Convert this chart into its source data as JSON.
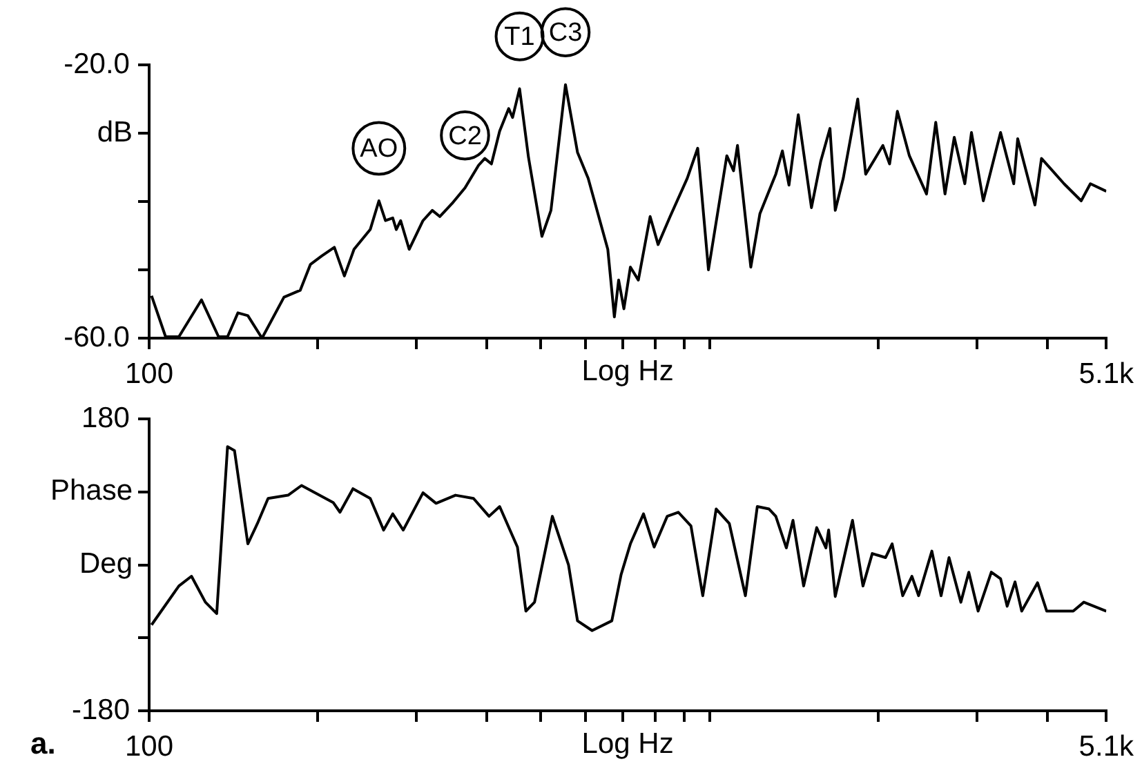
{
  "chart_data": [
    {
      "type": "line",
      "ylabel": "dB",
      "xlabel": "Log Hz",
      "log": "x",
      "marker": "none",
      "line_style": "solid",
      "xlim": [
        100,
        5100
      ],
      "xticks": [
        100,
        {
          "value": 200,
          "label": null
        },
        {
          "value": 300,
          "label": null
        },
        {
          "value": 400,
          "label": null
        },
        {
          "value": 500,
          "label": null
        },
        {
          "value": 600,
          "label": null
        },
        {
          "value": 700,
          "label": null
        },
        {
          "value": 800,
          "label": null
        },
        {
          "value": 900,
          "label": null
        },
        {
          "value": 1000,
          "label": null
        },
        {
          "value": 2000,
          "label": null
        },
        {
          "value": 3000,
          "label": null
        },
        {
          "value": 4000,
          "label": null
        },
        {
          "value": 5100,
          "label": "5.1k"
        }
      ],
      "ylim": [
        -60,
        -20
      ],
      "yticks": [
        {
          "value": -20,
          "label": "-20.0"
        },
        {
          "value": -30,
          "label": null
        },
        {
          "value": -40,
          "label": null
        },
        {
          "value": -50,
          "label": null
        },
        {
          "value": -60,
          "label": "-60.0"
        }
      ],
      "annotations": [
        {
          "text": "AO",
          "x": 257,
          "y": -39.9
        },
        {
          "text": "C2",
          "x": 366,
          "y": -38
        },
        {
          "text": "T1",
          "x": 458,
          "y": -23.5
        },
        {
          "text": "C3",
          "x": 553,
          "y": -22.9
        }
      ],
      "x": [
        101,
        107,
        113,
        124,
        133,
        138,
        144,
        150,
        159,
        174,
        186,
        194,
        203,
        214,
        223,
        232,
        248,
        257,
        264,
        272,
        276,
        281,
        291,
        308,
        320,
        330,
        347,
        366,
        387,
        397,
        408,
        422,
        438,
        445,
        458,
        475,
        502,
        521,
        553,
        581,
        607,
        658,
        676,
        688,
        703,
        722,
        746,
        783,
        809,
        850,
        912,
        952,
        995,
        1073,
        1103,
        1121,
        1184,
        1229,
        1312,
        1348,
        1385,
        1439,
        1519,
        1578,
        1639,
        1675,
        1731,
        1837,
        1898,
        2037,
        2094,
        2162,
        2271,
        2437,
        2531,
        2629,
        2731,
        2852,
        2931,
        3077,
        3303,
        3487,
        3544,
        3804,
        3908,
        4287,
        4600,
        4777,
        5100
      ],
      "series": [
        {
          "color": "#000000",
          "values": [
            -53.8,
            -59.8,
            -59.8,
            -54.4,
            -59.8,
            -59.8,
            -56.3,
            -56.7,
            -60,
            -54,
            -53,
            -49.2,
            -48,
            -46.7,
            -50.9,
            -47,
            -44.1,
            -39.9,
            -42.8,
            -42.4,
            -44.1,
            -42.8,
            -47,
            -42.8,
            -41.3,
            -42.2,
            -40.3,
            -38,
            -34.7,
            -33.7,
            -34.5,
            -29.7,
            -26.4,
            -27.7,
            -23.5,
            -33.5,
            -45.1,
            -41.3,
            -22.9,
            -32.8,
            -36.6,
            -47,
            -56.9,
            -51.5,
            -55.7,
            -49.6,
            -51.5,
            -42.2,
            -46.3,
            -42.2,
            -36.6,
            -32.2,
            -50,
            -33.3,
            -35.5,
            -31.8,
            -49.6,
            -41.8,
            -36,
            -32.6,
            -37.6,
            -27.3,
            -40.9,
            -34.1,
            -29.3,
            -41.3,
            -36.6,
            -25,
            -36,
            -31.8,
            -34.5,
            -26.8,
            -33.3,
            -38.9,
            -28.4,
            -38.9,
            -30.6,
            -37.4,
            -29.9,
            -39.9,
            -29.9,
            -37.4,
            -30.8,
            -40.5,
            -33.7,
            -37.4,
            -39.9,
            -37.4,
            -38.5
          ]
        }
      ]
    },
    {
      "type": "line",
      "ylabel": "Phase Deg",
      "xlabel": "Log Hz",
      "log": "x",
      "marker": "none",
      "line_style": "solid",
      "xlim": [
        100,
        5100
      ],
      "xticks": [
        100,
        {
          "value": 200,
          "label": null
        },
        {
          "value": 300,
          "label": null
        },
        {
          "value": 400,
          "label": null
        },
        {
          "value": 500,
          "label": null
        },
        {
          "value": 600,
          "label": null
        },
        {
          "value": 700,
          "label": null
        },
        {
          "value": 800,
          "label": null
        },
        {
          "value": 900,
          "label": null
        },
        {
          "value": 1000,
          "label": null
        },
        {
          "value": 2000,
          "label": null
        },
        {
          "value": 3000,
          "label": null
        },
        {
          "value": 4000,
          "label": null
        },
        {
          "value": 5100,
          "label": "5.1k"
        }
      ],
      "ylim": [
        -180,
        180
      ],
      "yticks": [
        180,
        {
          "value": 90,
          "label": null
        },
        {
          "value": 0,
          "label": null
        },
        {
          "value": -90,
          "label": null
        },
        -180
      ],
      "annotations": [
        "a."
      ],
      "x": [
        101,
        113,
        119,
        126,
        132,
        138,
        142,
        150,
        156,
        163,
        177,
        187,
        213,
        219,
        231,
        248,
        262,
        272,
        284,
        308,
        325,
        352,
        379,
        404,
        422,
        454,
        470,
        487,
        524,
        560,
        581,
        617,
        669,
        695,
        722,
        762,
        796,
        840,
        879,
        926,
        972,
        1027,
        1084,
        1158,
        1216,
        1276,
        1312,
        1370,
        1408,
        1471,
        1552,
        1612,
        1630,
        1675,
        1798,
        1877,
        1950,
        2059,
        2116,
        2210,
        2295,
        2359,
        2491,
        2587,
        2673,
        2806,
        2899,
        3012,
        3180,
        3303,
        3394,
        3505,
        3603,
        3845,
        3993,
        4287,
        4452,
        4650,
        5100
      ],
      "series": [
        {
          "color": "#000000",
          "values": [
            -74,
            -26,
            -14,
            -46,
            -60,
            146,
            141,
            26,
            51,
            82,
            86,
            98,
            77,
            65,
            94,
            82,
            43,
            63,
            43,
            89,
            76,
            86,
            82,
            60,
            72,
            22,
            -57,
            -46,
            60,
            0,
            -69,
            -81,
            -69,
            -12,
            26,
            63,
            22,
            60,
            65,
            48,
            -38,
            69,
            51,
            -38,
            72,
            69,
            60,
            21,
            55,
            -26,
            46,
            21,
            43,
            -39,
            55,
            -26,
            14,
            9,
            26,
            -38,
            -14,
            -38,
            17,
            -38,
            9,
            -46,
            -9,
            -57,
            -9,
            -17,
            -51,
            -21,
            -57,
            -22,
            -57,
            -57,
            -57,
            -46,
            -57
          ]
        }
      ]
    }
  ]
}
